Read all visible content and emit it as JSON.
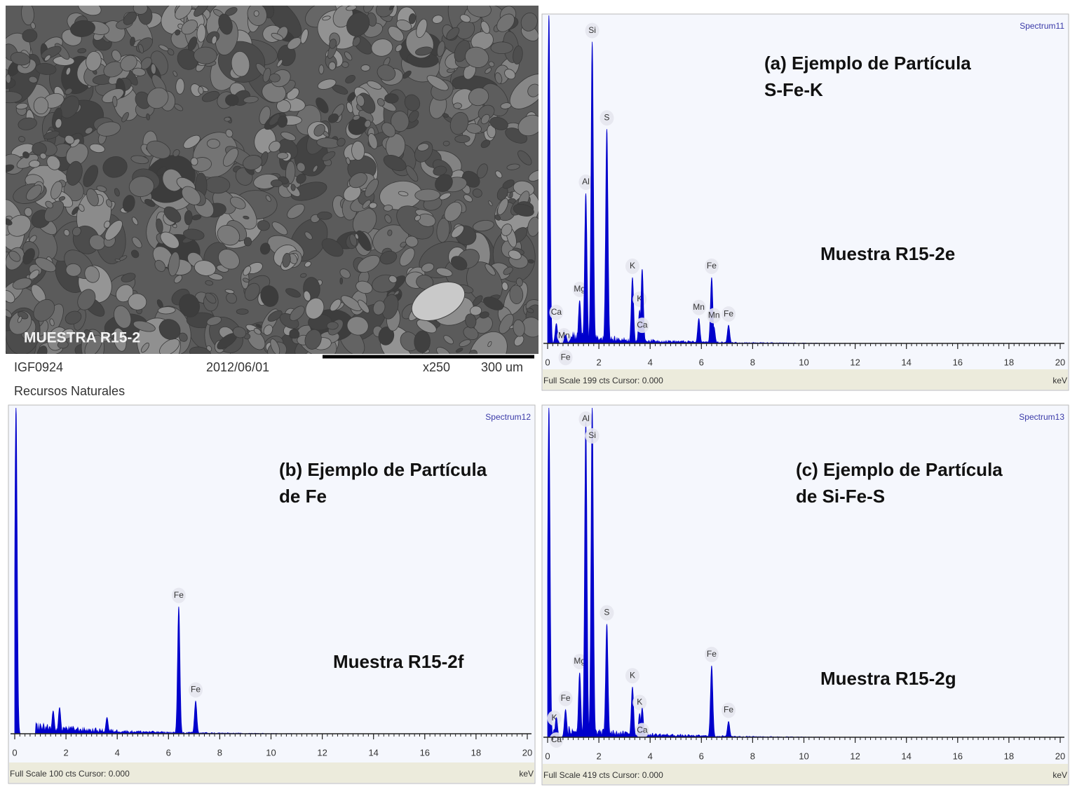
{
  "sem_image": {
    "label": "MUESTRA R15-2",
    "id": "IGF0924",
    "date": "2012/06/01",
    "magnification": "x250",
    "scale": "300 um",
    "institution": "Recursos Naturales"
  },
  "chart_data": [
    {
      "type": "area",
      "title": [
        "(a) Ejemplo de Partícula",
        "S-Fe-K"
      ],
      "annotation": "Muestra R15-2e",
      "spectrum": "Spectrum11",
      "xlim": [
        0,
        20
      ],
      "xticks": [
        0,
        2,
        4,
        6,
        8,
        10,
        12,
        14,
        16,
        18,
        20
      ],
      "x_unit": "keV",
      "ylim": [
        0,
        199
      ],
      "footer": "Full Scale 199 cts Cursor: 0.000",
      "color": "#0000cc",
      "peaks": [
        {
          "x": 0.05,
          "y": 199
        },
        {
          "label": "Ca",
          "x": 0.34,
          "y": 12
        },
        {
          "label": "Mn",
          "x": 0.64,
          "y": 8
        },
        {
          "label": "Fe",
          "x": 0.7,
          "y": 5
        },
        {
          "label": "Mg",
          "x": 1.25,
          "y": 26
        },
        {
          "label": "Al",
          "x": 1.49,
          "y": 91
        },
        {
          "label": "Si",
          "x": 1.74,
          "y": 183
        },
        {
          "label": "S",
          "x": 2.31,
          "y": 130
        },
        {
          "label": "K",
          "x": 3.31,
          "y": 40
        },
        {
          "label": "K",
          "x": 3.59,
          "y": 20
        },
        {
          "label": "Ca",
          "x": 3.69,
          "y": 45
        },
        {
          "label": "Mn",
          "x": 5.9,
          "y": 15
        },
        {
          "label": "Fe",
          "x": 6.4,
          "y": 40
        },
        {
          "label": "Mn",
          "x": 6.49,
          "y": 10
        },
        {
          "label": "Fe",
          "x": 7.06,
          "y": 11
        }
      ]
    },
    {
      "type": "area",
      "title": [
        "(b) Ejemplo de Partícula",
        "de Fe"
      ],
      "annotation": "Muestra R15-2f",
      "spectrum": "Spectrum12",
      "xlim": [
        0,
        20
      ],
      "xticks": [
        0,
        2,
        4,
        6,
        8,
        10,
        12,
        14,
        16,
        18,
        20
      ],
      "x_unit": "keV",
      "ylim": [
        0,
        100
      ],
      "footer": "Full Scale 100 cts Cursor: 0.000",
      "color": "#0000cc",
      "peaks": [
        {
          "x": 0.05,
          "y": 100
        },
        {
          "x": 1.5,
          "y": 7
        },
        {
          "x": 1.75,
          "y": 8
        },
        {
          "x": 3.6,
          "y": 5
        },
        {
          "label": "Fe",
          "x": 6.4,
          "y": 39
        },
        {
          "label": "Fe",
          "x": 7.06,
          "y": 10
        }
      ]
    },
    {
      "type": "area",
      "title": [
        "(c) Ejemplo de Partícula",
        "de Si-Fe-S"
      ],
      "annotation": "Muestra R15-2g",
      "spectrum": "Spectrum13",
      "xlim": [
        0,
        20
      ],
      "xticks": [
        0,
        2,
        4,
        6,
        8,
        10,
        12,
        14,
        16,
        18,
        20
      ],
      "x_unit": "keV",
      "ylim": [
        0,
        419
      ],
      "footer": "Full Scale 419 cts Cursor: 0.000",
      "color": "#0000cc",
      "peaks": [
        {
          "x": 0.05,
          "y": 419
        },
        {
          "label": "K",
          "x": 0.26,
          "y": 10
        },
        {
          "label": "Ca",
          "x": 0.34,
          "y": 25
        },
        {
          "label": "Fe",
          "x": 0.7,
          "y": 35
        },
        {
          "label": "Mg",
          "x": 1.25,
          "y": 82
        },
        {
          "label": "Al",
          "x": 1.49,
          "y": 401
        },
        {
          "label": "Si",
          "x": 1.74,
          "y": 419
        },
        {
          "label": "S",
          "x": 2.31,
          "y": 144
        },
        {
          "label": "K",
          "x": 3.31,
          "y": 64
        },
        {
          "label": "K",
          "x": 3.59,
          "y": 30
        },
        {
          "label": "Ca",
          "x": 3.69,
          "y": 37
        },
        {
          "label": "Fe",
          "x": 6.4,
          "y": 91
        },
        {
          "label": "Fe",
          "x": 7.06,
          "y": 20
        }
      ]
    }
  ]
}
